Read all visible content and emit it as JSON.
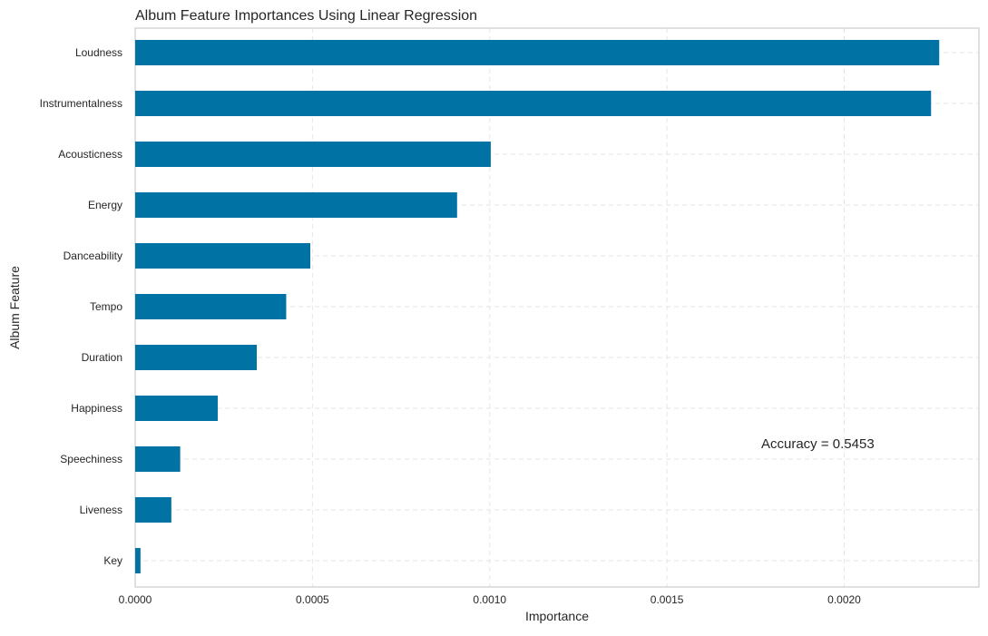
{
  "chart_data": {
    "type": "bar",
    "orientation": "horizontal",
    "title": "Album Feature Importances Using Linear Regression",
    "xlabel": "Importance",
    "ylabel": "Album Feature",
    "categories": [
      "Loudness",
      "Instrumentalness",
      "Acousticness",
      "Energy",
      "Danceability",
      "Tempo",
      "Duration",
      "Happiness",
      "Speechiness",
      "Liveness",
      "Key"
    ],
    "values": [
      0.002268,
      0.002245,
      0.001003,
      0.000908,
      0.000494,
      0.000426,
      0.000343,
      0.000233,
      0.000127,
      0.000102,
      1.5e-05
    ],
    "xlim": [
      0,
      0.00238
    ],
    "xticks": [
      0,
      0.0005,
      0.001,
      0.0015,
      0.002
    ],
    "xtick_labels": [
      "0.0000",
      "0.0005",
      "0.0010",
      "0.0015",
      "0.0020"
    ],
    "annotation": "Accuracy = 0.5453",
    "bar_color": "#0072a4",
    "grid": true,
    "grid_style": "dashed",
    "legend": "none"
  }
}
